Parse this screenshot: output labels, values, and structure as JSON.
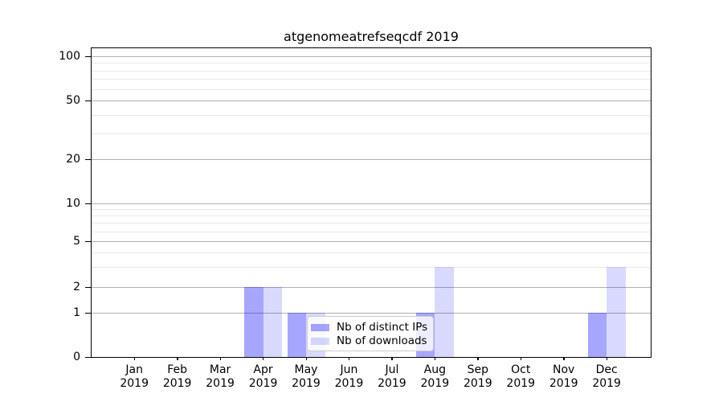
{
  "chart_data": {
    "type": "bar",
    "title": "atgenomeatrefseqcdf 2019",
    "categories": [
      "Jan",
      "Feb",
      "Mar",
      "Apr",
      "May",
      "Jun",
      "Jul",
      "Aug",
      "Sep",
      "Oct",
      "Nov",
      "Dec"
    ],
    "x_year": "2019",
    "series": [
      {
        "name": "Nb of distinct IPs",
        "color": "rgba(0,0,255,0.35)",
        "values": [
          0,
          0,
          0,
          2,
          1,
          0,
          0,
          1,
          0,
          0,
          0,
          1
        ]
      },
      {
        "name": "Nb of downloads",
        "color": "rgba(0,0,255,0.15)",
        "values": [
          0,
          0,
          0,
          2,
          1,
          0,
          0,
          3,
          0,
          0,
          0,
          3
        ]
      }
    ],
    "y_axis": {
      "scale": "symlog",
      "ticks": [
        0,
        1,
        2,
        5,
        10,
        20,
        50,
        100
      ],
      "minor_ticks": [
        3,
        4,
        6,
        7,
        8,
        9,
        30,
        40,
        60,
        70,
        80,
        90
      ],
      "range": [
        0,
        110
      ]
    },
    "grid": "horizontal",
    "legend_position": "lower center",
    "colors": {
      "major_grid": "#b0b0b0",
      "minor_grid": "#e8e8e8",
      "axis": "#000000",
      "text": "#000000",
      "background": "#ffffff"
    }
  }
}
